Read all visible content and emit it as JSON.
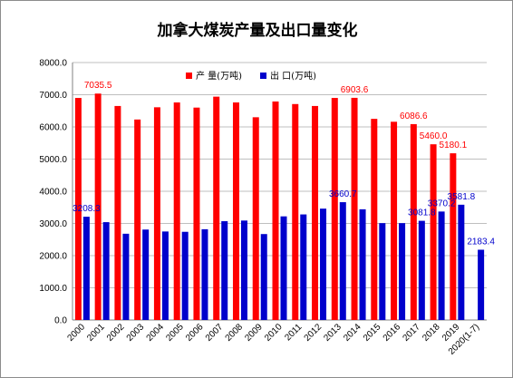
{
  "chart_data": {
    "type": "bar",
    "title": "加拿大煤炭产量及出口量变化",
    "categories": [
      "2000",
      "2001",
      "2002",
      "2003",
      "2004",
      "2005",
      "2006",
      "2007",
      "2008",
      "2009",
      "2010",
      "2011",
      "2012",
      "2013",
      "2014",
      "2015",
      "2016",
      "2017",
      "2018",
      "2019",
      "2020(1-7)"
    ],
    "series": [
      {
        "name": "产 量(万吨)",
        "color": "#ff0000",
        "values": [
          6900,
          7035.5,
          6650,
          6230,
          6610,
          6760,
          6600,
          6940,
          6760,
          6300,
          6790,
          6710,
          6650,
          6900,
          6903.6,
          6250,
          6160,
          6086.6,
          5460.0,
          5180.1,
          null
        ]
      },
      {
        "name": "出 口(万吨)",
        "color": "#0000cc",
        "values": [
          3208.3,
          3040,
          2680,
          2810,
          2750,
          2740,
          2820,
          3070,
          3090,
          2670,
          3220,
          3280,
          3460,
          3660.7,
          3440,
          3010,
          3010,
          3081.8,
          3370.2,
          3581.8,
          2183.4
        ]
      }
    ],
    "data_labels": [
      {
        "series": 0,
        "index": 1,
        "text": "7035.5"
      },
      {
        "series": 0,
        "index": 14,
        "text": "6903.6"
      },
      {
        "series": 0,
        "index": 17,
        "text": "6086.6"
      },
      {
        "series": 0,
        "index": 18,
        "text": "5460.0"
      },
      {
        "series": 0,
        "index": 19,
        "text": "5180.1"
      },
      {
        "series": 1,
        "index": 0,
        "text": "3208.3"
      },
      {
        "series": 1,
        "index": 13,
        "text": "3660.7"
      },
      {
        "series": 1,
        "index": 17,
        "text": "3081.8"
      },
      {
        "series": 1,
        "index": 18,
        "text": "3370.2"
      },
      {
        "series": 1,
        "index": 19,
        "text": "3581.8"
      },
      {
        "series": 1,
        "index": 20,
        "text": "2183.4"
      }
    ],
    "ylim": [
      0,
      8000
    ],
    "yticks": [
      "0.0",
      "1000.0",
      "2000.0",
      "3000.0",
      "4000.0",
      "5000.0",
      "6000.0",
      "7000.0",
      "8000.0"
    ],
    "grid": "horizontal",
    "legend": "top-center"
  }
}
